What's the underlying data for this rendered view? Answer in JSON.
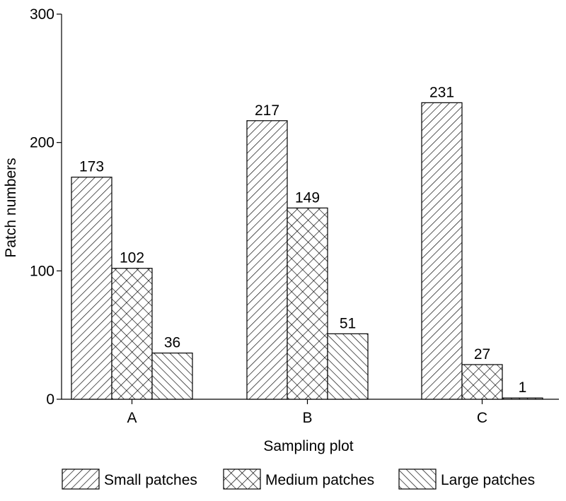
{
  "chart_data": {
    "type": "bar",
    "title": "",
    "xlabel": "Sampling plot",
    "ylabel": "Patch numbers",
    "categories": [
      "A",
      "B",
      "C"
    ],
    "series": [
      {
        "name": "Small patches",
        "values": [
          173,
          217,
          231
        ],
        "pattern": "diagonal-forward"
      },
      {
        "name": "Medium patches",
        "values": [
          102,
          149,
          27
        ],
        "pattern": "crosshatch"
      },
      {
        "name": "Large patches",
        "values": [
          36,
          51,
          1
        ],
        "pattern": "diagonal-backward"
      }
    ],
    "ylim": [
      0,
      300
    ],
    "yticks": [
      0,
      100,
      200,
      300
    ],
    "data_labels": true,
    "grid": false,
    "legend_position": "bottom",
    "colors": {
      "bar_fill": "#ffffff",
      "stroke": "#000000"
    }
  }
}
